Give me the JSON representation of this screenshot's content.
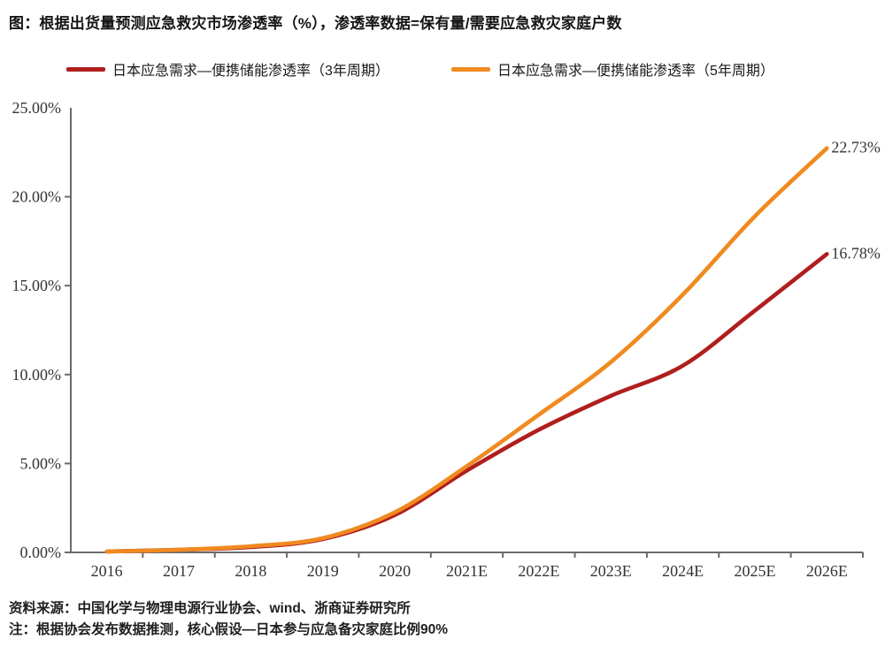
{
  "title": "图：根据出货量预测应急救灾市场渗透率（%），渗透率数据=保有量/需要应急救灾家庭户数",
  "legend": [
    {
      "label": "日本应急需求—便携储能渗透率（3年周期）",
      "color": "#b01e1e"
    },
    {
      "label": "日本应急需求—便携储能渗透率（5年周期）",
      "color": "#f08a1f"
    }
  ],
  "footer": {
    "source": "资料来源：中国化学与物理电源行业协会、wind、浙商证券研究所",
    "note": "注：根据协会发布数据推测，核心假设—日本参与应急备灾家庭比例90%"
  },
  "chart_data": {
    "type": "line",
    "categories": [
      "2016",
      "2017",
      "2018",
      "2019",
      "2020",
      "2021E",
      "2022E",
      "2023E",
      "2024E",
      "2025E",
      "2026E"
    ],
    "series": [
      {
        "name": "日本应急需求—便携储能渗透率（3年周期）",
        "color": "#b01e1e",
        "values": [
          0.05,
          0.15,
          0.3,
          0.75,
          2.1,
          4.6,
          6.9,
          8.8,
          10.5,
          13.6,
          16.78
        ],
        "end_label": "16.78%"
      },
      {
        "name": "日本应急需求—便携储能渗透率（5年周期）",
        "color": "#f08a1f",
        "values": [
          0.05,
          0.15,
          0.35,
          0.8,
          2.25,
          4.85,
          7.75,
          10.7,
          14.5,
          18.9,
          22.73
        ],
        "end_label": "22.73%"
      }
    ],
    "title": "根据出货量预测应急救灾市场渗透率（%）",
    "xlabel": "",
    "ylabel": "",
    "ylim": [
      0,
      25
    ],
    "ytick_step": 5,
    "yticks": [
      "25.00%",
      "20.00%",
      "15.00%",
      "10.00%",
      "5.00%",
      "0.00%"
    ],
    "grid": false,
    "legend_position": "top"
  }
}
